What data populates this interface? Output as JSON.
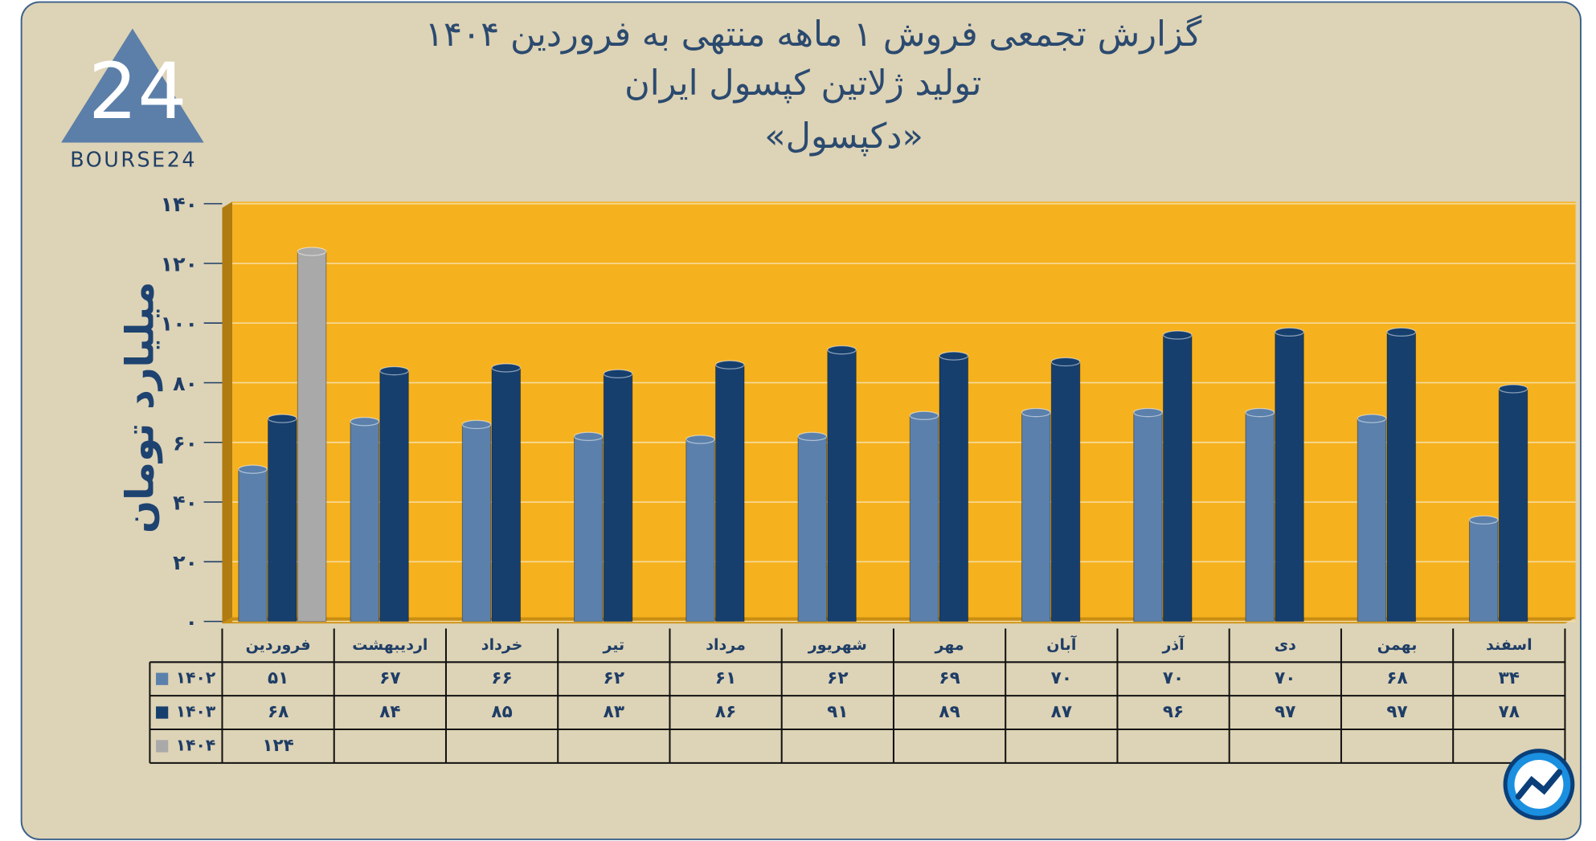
{
  "logo": {
    "mark": "24",
    "text": "BOURSE24"
  },
  "chart_data": {
    "type": "bar",
    "title": [
      "گزارش تجمعی فروش ۱ ماهه منتهی به فروردین ۱۴۰۴",
      "تولید ژلاتین کپسول ایران",
      "«دکپسول»"
    ],
    "y_label": "میلیارد تومان",
    "categories": [
      "فروردین",
      "اردیبهشت",
      "خرداد",
      "تیر",
      "مرداد",
      "شهریور",
      "مهر",
      "آبان",
      "آذر",
      "دی",
      "بهمن",
      "اسفند"
    ],
    "series": [
      {
        "name": "۱۴۰۲",
        "color": "#5b80ab",
        "values": [
          51,
          67,
          66,
          62,
          61,
          62,
          69,
          70,
          70,
          70,
          68,
          34
        ],
        "value_labels": [
          "۵۱",
          "۶۷",
          "۶۶",
          "۶۲",
          "۶۱",
          "۶۲",
          "۶۹",
          "۷۰",
          "۷۰",
          "۷۰",
          "۶۸",
          "۳۴"
        ]
      },
      {
        "name": "۱۴۰۳",
        "color": "#163f6e",
        "values": [
          68,
          84,
          85,
          83,
          86,
          91,
          89,
          87,
          96,
          97,
          97,
          78
        ],
        "value_labels": [
          "۶۸",
          "۸۴",
          "۸۵",
          "۸۳",
          "۸۶",
          "۹۱",
          "۸۹",
          "۸۷",
          "۹۶",
          "۹۷",
          "۹۷",
          "۷۸"
        ]
      },
      {
        "name": "۱۴۰۴",
        "color": "#a9a9a9",
        "values": [
          124,
          null,
          null,
          null,
          null,
          null,
          null,
          null,
          null,
          null,
          null,
          null
        ],
        "value_labels": [
          "۱۲۴",
          null,
          null,
          null,
          null,
          null,
          null,
          null,
          null,
          null,
          null,
          null
        ]
      }
    ],
    "ylim": [
      0,
      140
    ],
    "yticks": [
      {
        "value": 0,
        "label": "۰"
      },
      {
        "value": 20,
        "label": "۲۰"
      },
      {
        "value": 40,
        "label": "۴۰"
      },
      {
        "value": 60,
        "label": "۶۰"
      },
      {
        "value": 80,
        "label": "۸۰"
      },
      {
        "value": 100,
        "label": "۱۰۰"
      },
      {
        "value": 120,
        "label": "۱۲۰"
      },
      {
        "value": 140,
        "label": "۱۴۰"
      }
    ],
    "grid": true
  }
}
